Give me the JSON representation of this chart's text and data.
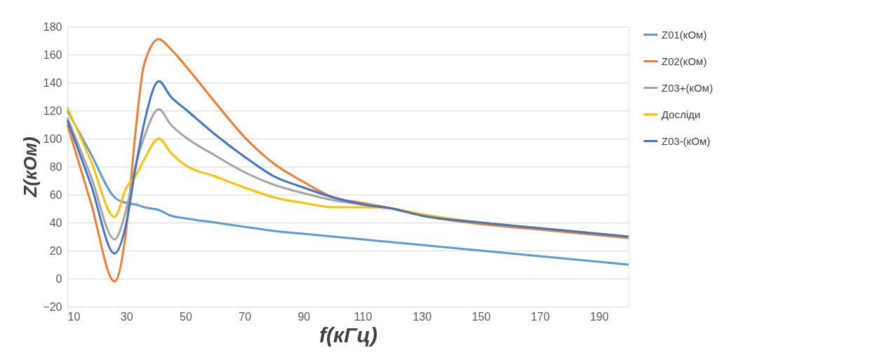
{
  "chart_data": {
    "type": "line",
    "xlabel": "f(кГц)",
    "ylabel": "Z(кОм)",
    "x": [
      10,
      18,
      26,
      30,
      33,
      36,
      41,
      45,
      50,
      60,
      70,
      80,
      90,
      100,
      110,
      120,
      130,
      150,
      170,
      200
    ],
    "xlim": [
      10,
      200
    ],
    "xticks": [
      10,
      30,
      50,
      70,
      90,
      110,
      130,
      150,
      170,
      190
    ],
    "ylim": [
      -20,
      180
    ],
    "yticks": [
      -20,
      0,
      20,
      40,
      60,
      80,
      100,
      120,
      140,
      160,
      180
    ],
    "grid": "y",
    "legend": "right",
    "line_style": "solid",
    "marker": "none",
    "series": [
      {
        "name": "Z01(кОм)",
        "color": "#5b9bd5",
        "values": [
          120,
          89,
          58,
          54,
          53,
          51,
          49,
          45,
          43,
          40,
          37,
          34,
          32,
          30,
          28,
          26,
          24,
          20,
          16,
          10
        ]
      },
      {
        "name": "Z02(кОм)",
        "color": "#ed7d31",
        "values": [
          110,
          54,
          -2,
          36,
          103,
          153,
          171,
          164,
          152,
          126,
          101,
          82,
          69,
          58,
          54,
          50,
          45,
          39,
          35,
          29
        ]
      },
      {
        "name": "Z03+(кОм)",
        "color": "#a5a5a5",
        "values": [
          115,
          73,
          28,
          50,
          80,
          101,
          121,
          110,
          101,
          88,
          76,
          67,
          61,
          56,
          53,
          50,
          45,
          40,
          36,
          30
        ]
      },
      {
        "name": "Досліди",
        "color": "#ffc000",
        "values": [
          122,
          84,
          44,
          65,
          73,
          85,
          100,
          90,
          81,
          73,
          65,
          58,
          54,
          51,
          51,
          50,
          46,
          40,
          36,
          30
        ]
      },
      {
        "name": "Z03-(кОм)",
        "color": "#4472c4",
        "values": [
          113,
          67,
          18,
          40,
          78,
          111,
          141,
          130,
          121,
          103,
          87,
          73,
          65,
          58,
          53,
          50,
          45,
          40,
          36,
          30
        ]
      }
    ]
  }
}
